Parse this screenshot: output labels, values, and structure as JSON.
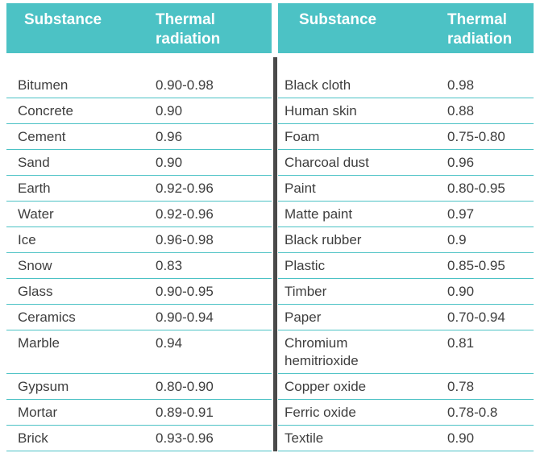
{
  "colors": {
    "header_bg": "#4cc2c5",
    "header_text": "#ffffff",
    "body_text": "#3e3e3e",
    "row_line": "#4cc2c5",
    "divider": "#4a4a4a"
  },
  "chart_data": [
    {
      "type": "table",
      "title": "Thermal radiation by substance (left table)",
      "columns": [
        "Substance",
        "Thermal radiation"
      ],
      "rows": [
        [
          "Bitumen",
          "0.90-0.98"
        ],
        [
          "Concrete",
          "0.90"
        ],
        [
          "Cement",
          "0.96"
        ],
        [
          "Sand",
          "0.90"
        ],
        [
          "Earth",
          "0.92-0.96"
        ],
        [
          "Water",
          "0.92-0.96"
        ],
        [
          "Ice",
          "0.96-0.98"
        ],
        [
          "Snow",
          "0.83"
        ],
        [
          "Glass",
          "0.90-0.95"
        ],
        [
          "Ceramics",
          "0.90-0.94"
        ],
        [
          "Marble",
          "0.94"
        ],
        [
          "Gypsum",
          "0.80-0.90"
        ],
        [
          "Mortar",
          "0.89-0.91"
        ],
        [
          "Brick",
          "0.93-0.96"
        ]
      ]
    },
    {
      "type": "table",
      "title": "Thermal radiation by substance (right table)",
      "columns": [
        "Substance",
        "Thermal radiation"
      ],
      "rows": [
        [
          "Black cloth",
          "0.98"
        ],
        [
          "Human skin",
          "0.88"
        ],
        [
          "Foam",
          "0.75-0.80"
        ],
        [
          "Charcoal dust",
          "0.96"
        ],
        [
          "Paint",
          "0.80-0.95"
        ],
        [
          "Matte paint",
          "0.97"
        ],
        [
          "Black rubber",
          "0.9"
        ],
        [
          "Plastic",
          "0.85-0.95"
        ],
        [
          "Timber",
          "0.90"
        ],
        [
          "Paper",
          "0.70-0.94"
        ],
        [
          "Chromium hemitrioxide",
          "0.81"
        ],
        [
          "Copper oxide",
          "0.78"
        ],
        [
          "Ferric oxide",
          "0.78-0.8"
        ],
        [
          "Textile",
          "0.90"
        ]
      ]
    }
  ]
}
